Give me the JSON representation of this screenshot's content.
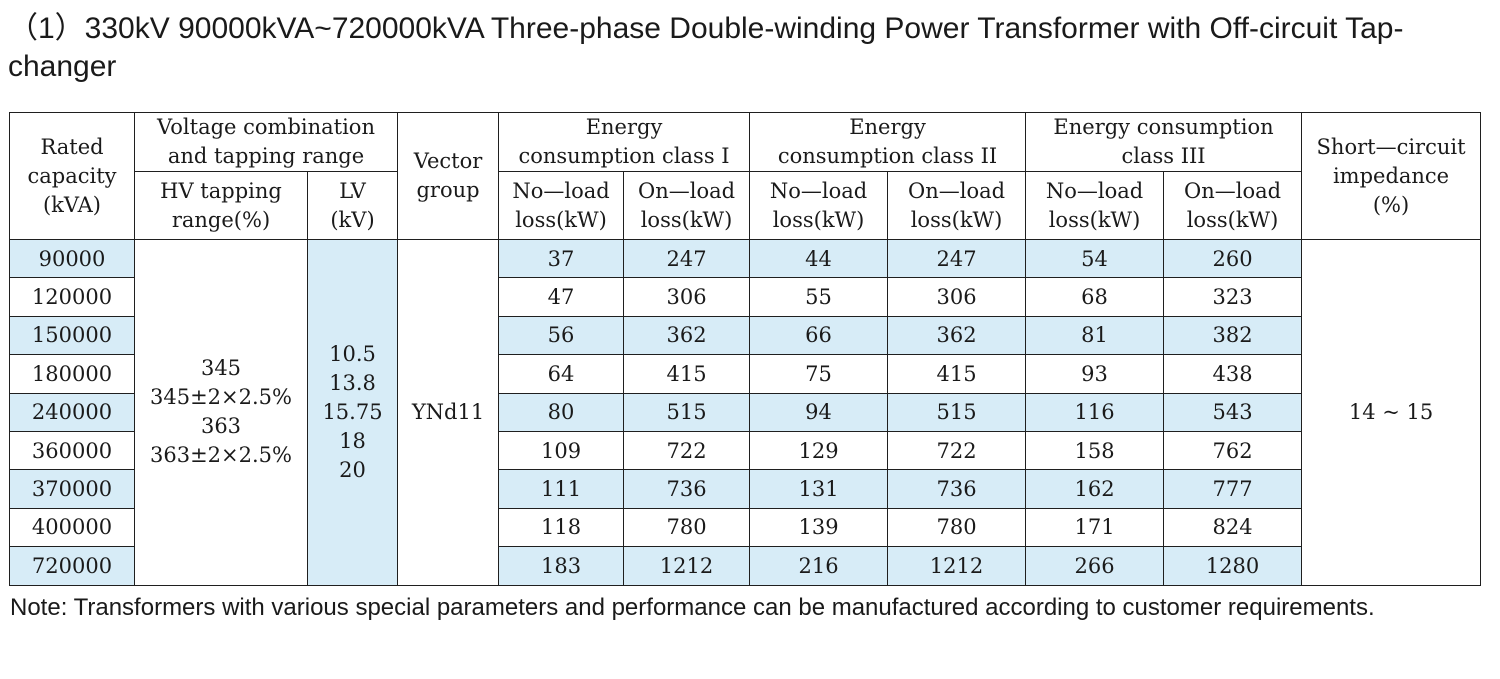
{
  "title": "（1）330kV 90000kVA~720000kVA Three-phase Double-winding Power Transformer with Off-circuit Tap-changer",
  "table": {
    "headers": {
      "rated_capacity": [
        "Rated",
        "capacity",
        "(kVA)"
      ],
      "voltage_combination": [
        "Voltage combination",
        "and tapping range"
      ],
      "hv_tapping": [
        "HV tapping",
        "range(%)"
      ],
      "lv": [
        "LV",
        "(kV)"
      ],
      "vector_group": [
        "Vector",
        "group"
      ],
      "class_1": [
        "Energy",
        "consumption class I"
      ],
      "class_2": [
        "Energy",
        "consumption class II"
      ],
      "class_3": [
        "Energy consumption",
        "class  III"
      ],
      "no_load": [
        "No—load",
        "loss(kW)"
      ],
      "on_load": [
        "On—load",
        "loss(kW)"
      ],
      "short_circuit": [
        "Short—circuit",
        "impedance",
        "(%)"
      ]
    },
    "hv_tapping_values": [
      "345",
      "345±2×2.5%",
      "363",
      "363±2×2.5%"
    ],
    "lv_values": [
      "10.5",
      "13.8",
      "15.75",
      "18",
      "20"
    ],
    "vector_group_value": "YNd11",
    "impedance_value": "14 ~ 15",
    "rows": [
      {
        "capacity": "90000",
        "c1_no": "37",
        "c1_on": "247",
        "c2_no": "44",
        "c2_on": "247",
        "c3_no": "54",
        "c3_on": "260"
      },
      {
        "capacity": "120000",
        "c1_no": "47",
        "c1_on": "306",
        "c2_no": "55",
        "c2_on": "306",
        "c3_no": "68",
        "c3_on": "323"
      },
      {
        "capacity": "150000",
        "c1_no": "56",
        "c1_on": "362",
        "c2_no": "66",
        "c2_on": "362",
        "c3_no": "81",
        "c3_on": "382"
      },
      {
        "capacity": "180000",
        "c1_no": "64",
        "c1_on": "415",
        "c2_no": "75",
        "c2_on": "415",
        "c3_no": "93",
        "c3_on": "438"
      },
      {
        "capacity": "240000",
        "c1_no": "80",
        "c1_on": "515",
        "c2_no": "94",
        "c2_on": "515",
        "c3_no": "116",
        "c3_on": "543"
      },
      {
        "capacity": "360000",
        "c1_no": "109",
        "c1_on": "722",
        "c2_no": "129",
        "c2_on": "722",
        "c3_no": "158",
        "c3_on": "762"
      },
      {
        "capacity": "370000",
        "c1_no": "111",
        "c1_on": "736",
        "c2_no": "131",
        "c2_on": "736",
        "c3_no": "162",
        "c3_on": "777"
      },
      {
        "capacity": "400000",
        "c1_no": "118",
        "c1_on": "780",
        "c2_no": "139",
        "c2_on": "780",
        "c3_no": "171",
        "c3_on": "824"
      },
      {
        "capacity": "720000",
        "c1_no": "183",
        "c1_on": "1212",
        "c2_no": "216",
        "c2_on": "1212",
        "c3_no": "266",
        "c3_on": "1280"
      }
    ]
  },
  "note": "Note: Transformers with various special parameters and performance can be manufactured according to customer requirements.",
  "colors": {
    "row_shade": "#d7ecf7",
    "border": "#1f1f1f",
    "text": "#1a1a1a"
  }
}
